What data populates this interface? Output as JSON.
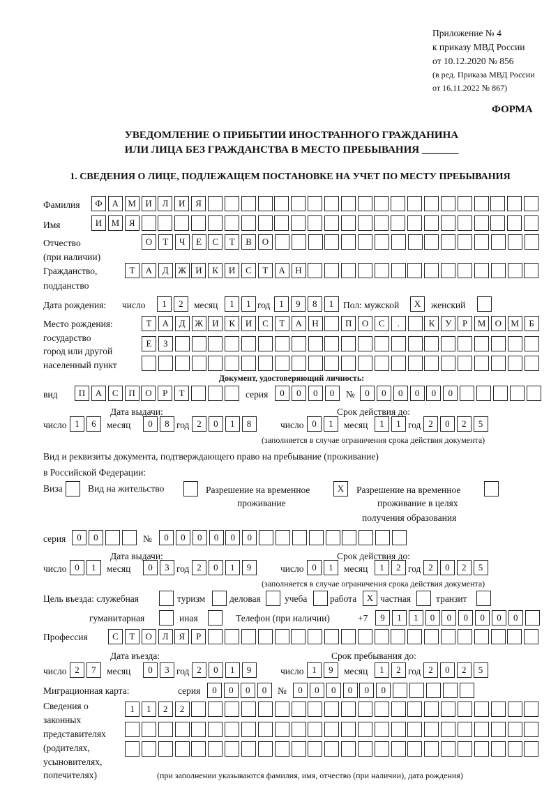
{
  "header": {
    "appendix": [
      "Приложение № 4",
      "к приказу МВД России",
      "от 10.12.2020 № 856"
    ],
    "revision": [
      "(в ред. Приказа МВД России",
      "от 16.11.2022 № 867)"
    ],
    "form_label": "ФОРМА",
    "title": [
      "УВЕДОМЛЕНИЕ О ПРИБЫТИИ ИНОСТРАННОГО ГРАЖДАНИНА",
      "ИЛИ ЛИЦА БЕЗ ГРАЖДАНСТВА В МЕСТО ПРЕБЫВАНИЯ _______"
    ],
    "section": "1. СВЕДЕНИЯ О ЛИЦЕ, ПОДЛЕЖАЩЕМ ПОСТАНОВКЕ НА УЧЕТ ПО МЕСТУ ПРЕБЫВАНИЯ"
  },
  "labels": {
    "surname": "Фамилия",
    "name": "Имя",
    "patronymic": "Отчество",
    "patronymic2": "(при наличии)",
    "citizenship": "Гражданство,",
    "citizenship2": "подданство",
    "birth_date": "Дата рождения:",
    "day": "число",
    "month": "месяц",
    "year": "год",
    "sex": "Пол: мужской",
    "female": "женский",
    "birth_place": [
      "Место рождения:",
      "государство",
      "город или другой",
      "населенный пункт"
    ],
    "id_doc": "Документ, удостоверяющий личность:",
    "kind": "вид",
    "series": "серия",
    "number": "№",
    "issue_date": "Дата выдачи:",
    "valid_until": "Срок действия до:",
    "note_validity": "(заполняется в случае ограничения срока действия документа)",
    "stay_doc": "Вид и реквизиты документа, подтверждающего право на пребывание (проживание)",
    "stay_doc2": "в Российской Федерации:",
    "visa": "Виза",
    "residence": "Вид на жительство",
    "temp_permit": [
      "Разрешение на временное",
      "проживание"
    ],
    "temp_permit_edu": [
      "Разрешение на временное",
      "проживание в целях",
      "получения образования"
    ],
    "purpose": "Цель въезда: служебная",
    "tourism": "туризм",
    "business": "деловая",
    "study": "учеба",
    "work": "работа",
    "private": "частная",
    "transit": "транзит",
    "humanitarian": "гуманитарная",
    "other": "иная",
    "phone": "Телефон (при наличии)",
    "phone_prefix": "+7",
    "profession": "Профессия",
    "entry_date": "Дата въезда:",
    "stay_until": "Срок пребывания до:",
    "migration_card": "Миграционная карта:",
    "representatives": [
      "Сведения о",
      "законных",
      "представителях",
      "(родителях,",
      "усыновителях,",
      "попечителях)"
    ],
    "rep_note": "(при заполнении указываются фамилия, имя, отчество (при наличии), дата рождения)"
  },
  "person": {
    "surname": "ФАМИЛИЯ",
    "name": "ИМЯ",
    "patronymic": "ОТЧЕСТВО",
    "citizenship": "ТАДЖИКИСТАН",
    "birth_day": "12",
    "birth_month": "11",
    "birth_year": "1981",
    "male": "X",
    "female": "",
    "birth_place_1": "ТАДЖИКИСТАН ПОС. КУРМОМБ",
    "birth_place_2": "ЕЗ",
    "birth_place_3": "",
    "id_kind": "ПАСПОРТ",
    "id_series": "0000",
    "id_number": "000000",
    "id_issue_day": "16",
    "id_issue_month": "08",
    "id_issue_year": "2018",
    "id_valid_day": "01",
    "id_valid_month": "11",
    "id_valid_year": "2025",
    "visa": "",
    "residence": "",
    "temp_permit": "X",
    "temp_permit_edu": "",
    "stay_series": "00",
    "stay_number": "000000",
    "stay_issue_day": "01",
    "stay_issue_month": "03",
    "stay_issue_year": "2019",
    "stay_valid_day": "01",
    "stay_valid_month": "12",
    "stay_valid_year": "2025",
    "purpose": {
      "official": "",
      "tourism": "",
      "business": "",
      "study": "",
      "work": "X",
      "private": "",
      "transit": "",
      "humanitarian": "",
      "other": ""
    },
    "phone": "911000000",
    "profession": "СТОЛЯР",
    "entry_day": "27",
    "entry_month": "03",
    "entry_year": "2019",
    "stay_day": "19",
    "stay_month": "12",
    "stay_year": "2025",
    "mc_series": "0000",
    "mc_number": "000000",
    "rep_1": "1122",
    "rep_2": "",
    "rep_3": ""
  }
}
